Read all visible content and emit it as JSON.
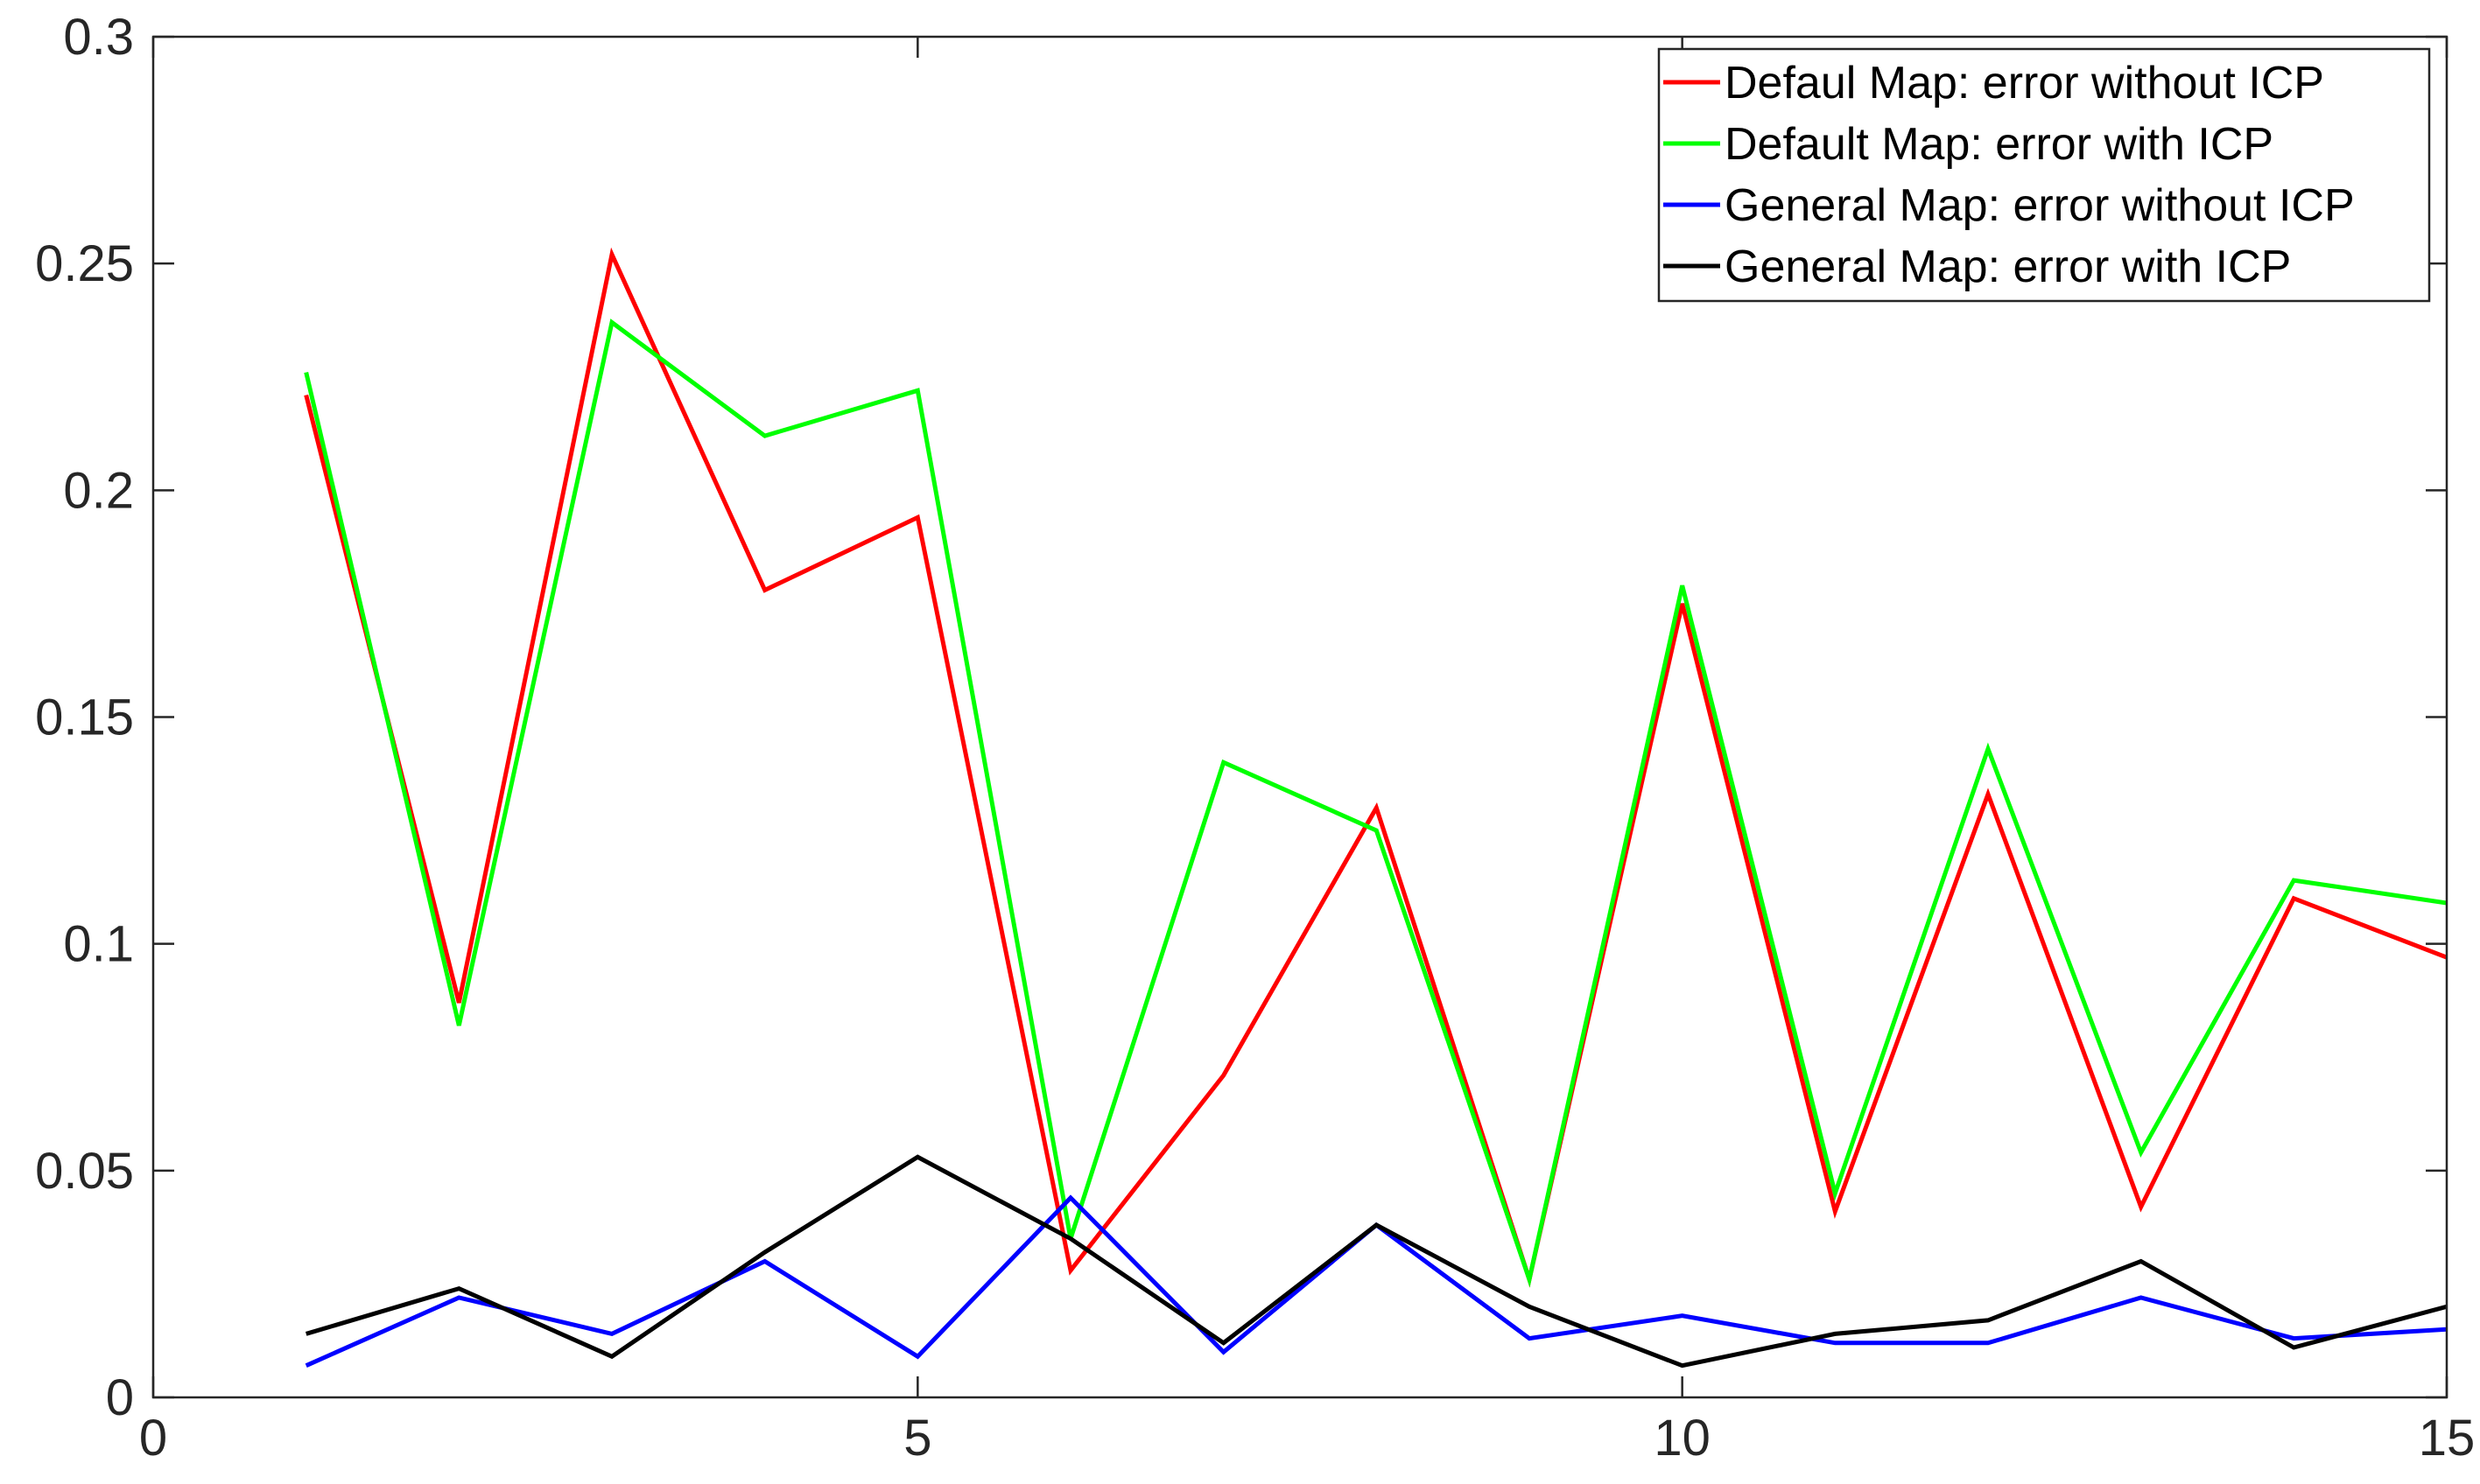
{
  "chart_data": {
    "type": "line",
    "title": "",
    "xlabel": "",
    "ylabel": "",
    "xlim": [
      0,
      15
    ],
    "ylim": [
      0,
      0.3
    ],
    "xticks": [
      0,
      5,
      10,
      15
    ],
    "xtick_labels": [
      "0",
      "5",
      "10",
      "15"
    ],
    "yticks": [
      0,
      0.05,
      0.1,
      0.15,
      0.2,
      0.25,
      0.3
    ],
    "ytick_labels": [
      "0",
      "0.05",
      "0.1",
      "0.15",
      "0.2",
      "0.25",
      "0.3"
    ],
    "grid": false,
    "legend_position": "top-right",
    "x": [
      1,
      2,
      3,
      4,
      5,
      6,
      7,
      8,
      9,
      10,
      11,
      12,
      13,
      14,
      15
    ],
    "series": [
      {
        "name": "Defaul Map: error without ICP",
        "color": "#ff0000",
        "values": [
          0.221,
          0.087,
          0.252,
          0.178,
          0.194,
          0.028,
          0.071,
          0.13,
          0.026,
          0.175,
          0.041,
          0.133,
          0.042,
          0.11,
          0.097
        ]
      },
      {
        "name": "Default Map: error with ICP",
        "color": "#00ff00",
        "values": [
          0.226,
          0.082,
          0.237,
          0.212,
          0.222,
          0.035,
          0.14,
          0.125,
          0.026,
          0.179,
          0.045,
          0.143,
          0.054,
          0.114,
          0.109
        ]
      },
      {
        "name": "General Map: error without ICP",
        "color": "#0000ff",
        "values": [
          0.007,
          0.022,
          0.014,
          0.03,
          0.009,
          0.044,
          0.01,
          0.038,
          0.013,
          0.018,
          0.012,
          0.012,
          0.022,
          0.013,
          0.015
        ]
      },
      {
        "name": "General Map: error with ICP",
        "color": "#000000",
        "values": [
          0.014,
          0.024,
          0.009,
          0.032,
          0.053,
          0.035,
          0.012,
          0.038,
          0.02,
          0.007,
          0.014,
          0.017,
          0.03,
          0.011,
          0.02
        ]
      }
    ]
  }
}
